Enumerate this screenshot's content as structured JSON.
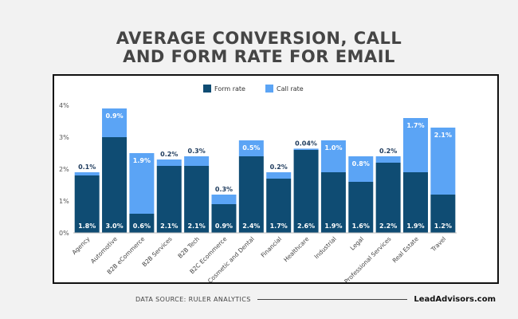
{
  "title_lines": [
    "AVERAGE CONVERSION, CALL",
    "AND FORM RATE FOR EMAIL"
  ],
  "footer": {
    "source": "DATA SOURCE: RULER ANALYTICS",
    "brand": "LeadAdvisors.com"
  },
  "colors": {
    "form": "#0f4c73",
    "call": "#5ba4f5",
    "title": "#454545"
  },
  "chart_data": {
    "type": "bar",
    "stacked": true,
    "categories": [
      "Agency",
      "Automotive",
      "B2B eCommerce",
      "B2B Services",
      "B2B Tech",
      "B2C Ecommerce",
      "Cosmetic and Dental",
      "Financial",
      "Healthcare",
      "Industrial",
      "Legal",
      "Professional Services",
      "Real Estate",
      "Travel"
    ],
    "series": [
      {
        "name": "Form rate",
        "values": [
          1.8,
          3.0,
          0.6,
          2.1,
          2.1,
          0.9,
          2.4,
          1.7,
          2.6,
          1.9,
          1.6,
          2.2,
          1.9,
          1.2
        ],
        "labels": [
          "1.8%",
          "3.0%",
          "0.6%",
          "2.1%",
          "2.1%",
          "0.9%",
          "2.4%",
          "1.7%",
          "2.6%",
          "1.9%",
          "1.6%",
          "2.2%",
          "1.9%",
          "1.2%"
        ]
      },
      {
        "name": "Call rate",
        "values": [
          0.1,
          0.9,
          1.9,
          0.2,
          0.3,
          0.3,
          0.5,
          0.2,
          0.04,
          1.0,
          0.8,
          0.2,
          1.7,
          2.1
        ],
        "labels": [
          "0.1%",
          "0.9%",
          "1.9%",
          "0.2%",
          "0.3%",
          "0.3%",
          "0.5%",
          "0.2%",
          "0.04%",
          "1.0%",
          "0.8%",
          "0.2%",
          "1.7%",
          "2.1%"
        ]
      }
    ],
    "ylim": [
      0,
      4
    ],
    "yticks": [
      "0%",
      "1%",
      "2%",
      "3%",
      "4%"
    ],
    "legend": "top-center",
    "grid": false
  }
}
